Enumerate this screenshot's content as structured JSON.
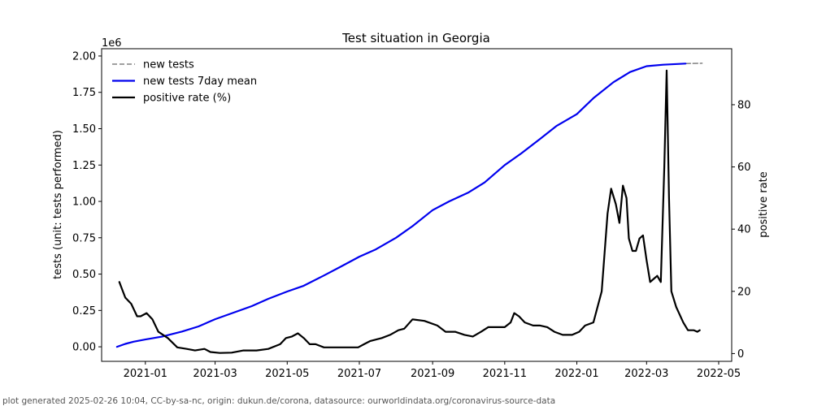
{
  "chart_data": {
    "type": "line",
    "title": "Test situation in Georgia",
    "ylabel": "tests (unit: tests performed)",
    "y2label": "positive rate",
    "y_offset_label": "1e6",
    "x_ticks": [
      "2021-01",
      "2021-03",
      "2021-05",
      "2021-07",
      "2021-09",
      "2021-11",
      "2022-01",
      "2022-03",
      "2022-05"
    ],
    "y_ticks": [
      "0.00",
      "0.25",
      "0.50",
      "0.75",
      "1.00",
      "1.25",
      "1.50",
      "1.75",
      "2.00"
    ],
    "y2_ticks": [
      "0",
      "20",
      "40",
      "60",
      "80"
    ],
    "ylim": [
      -0.1,
      2.05
    ],
    "y2lim": [
      -2.5,
      98
    ],
    "legend_position": "upper-left",
    "grid": false,
    "series": [
      {
        "name": "new tests",
        "axis": "left",
        "style": "dashed",
        "color": "#808080",
        "points": [
          [
            "2022-04-03",
            1.948
          ],
          [
            "2022-04-17",
            1.95
          ]
        ]
      },
      {
        "name": "new tests 7day mean",
        "axis": "left",
        "style": "solid",
        "color": "#0000ee",
        "points": [
          [
            "2020-12-08",
            0.0
          ],
          [
            "2020-12-15",
            0.02
          ],
          [
            "2020-12-22",
            0.035
          ],
          [
            "2021-01-01",
            0.05
          ],
          [
            "2021-01-15",
            0.07
          ],
          [
            "2021-02-01",
            0.105
          ],
          [
            "2021-02-15",
            0.14
          ],
          [
            "2021-03-01",
            0.19
          ],
          [
            "2021-03-15",
            0.23
          ],
          [
            "2021-04-01",
            0.28
          ],
          [
            "2021-04-15",
            0.33
          ],
          [
            "2021-05-01",
            0.38
          ],
          [
            "2021-05-15",
            0.42
          ],
          [
            "2021-06-01",
            0.49
          ],
          [
            "2021-06-15",
            0.55
          ],
          [
            "2021-07-01",
            0.62
          ],
          [
            "2021-07-15",
            0.67
          ],
          [
            "2021-08-01",
            0.75
          ],
          [
            "2021-08-15",
            0.83
          ],
          [
            "2021-09-01",
            0.94
          ],
          [
            "2021-09-15",
            1.0
          ],
          [
            "2021-10-01",
            1.06
          ],
          [
            "2021-10-15",
            1.13
          ],
          [
            "2021-11-01",
            1.25
          ],
          [
            "2021-11-15",
            1.33
          ],
          [
            "2021-12-01",
            1.43
          ],
          [
            "2021-12-15",
            1.52
          ],
          [
            "2022-01-01",
            1.6
          ],
          [
            "2022-01-15",
            1.71
          ],
          [
            "2022-02-01",
            1.82
          ],
          [
            "2022-02-15",
            1.89
          ],
          [
            "2022-03-01",
            1.93
          ],
          [
            "2022-03-15",
            1.94
          ],
          [
            "2022-04-03",
            1.948
          ]
        ]
      },
      {
        "name": "positive rate (%)",
        "axis": "right",
        "style": "solid",
        "color": "#000000",
        "points": [
          [
            "2020-12-10",
            23
          ],
          [
            "2020-12-12",
            21
          ],
          [
            "2020-12-15",
            18
          ],
          [
            "2020-12-20",
            16
          ],
          [
            "2020-12-25",
            12
          ],
          [
            "2020-12-28",
            12
          ],
          [
            "2021-01-02",
            13
          ],
          [
            "2021-01-07",
            11
          ],
          [
            "2021-01-12",
            7
          ],
          [
            "2021-01-20",
            5
          ],
          [
            "2021-01-28",
            2
          ],
          [
            "2021-02-05",
            1.5
          ],
          [
            "2021-02-12",
            1
          ],
          [
            "2021-02-20",
            1.5
          ],
          [
            "2021-02-25",
            0.5
          ],
          [
            "2021-03-05",
            0.2
          ],
          [
            "2021-03-15",
            0.3
          ],
          [
            "2021-03-25",
            1
          ],
          [
            "2021-04-05",
            1
          ],
          [
            "2021-04-15",
            1.5
          ],
          [
            "2021-04-25",
            3
          ],
          [
            "2021-04-30",
            5
          ],
          [
            "2021-05-05",
            5.5
          ],
          [
            "2021-05-10",
            6.5
          ],
          [
            "2021-05-15",
            5
          ],
          [
            "2021-05-20",
            3
          ],
          [
            "2021-05-25",
            3
          ],
          [
            "2021-06-01",
            2
          ],
          [
            "2021-06-10",
            2
          ],
          [
            "2021-06-20",
            2
          ],
          [
            "2021-06-30",
            2
          ],
          [
            "2021-07-05",
            3
          ],
          [
            "2021-07-10",
            4
          ],
          [
            "2021-07-20",
            5
          ],
          [
            "2021-07-27",
            6
          ],
          [
            "2021-08-03",
            7.5
          ],
          [
            "2021-08-08",
            8
          ],
          [
            "2021-08-15",
            11
          ],
          [
            "2021-08-25",
            10.5
          ],
          [
            "2021-09-05",
            9
          ],
          [
            "2021-09-12",
            7
          ],
          [
            "2021-09-20",
            7
          ],
          [
            "2021-09-28",
            6
          ],
          [
            "2021-10-05",
            5.5
          ],
          [
            "2021-10-12",
            7
          ],
          [
            "2021-10-18",
            8.5
          ],
          [
            "2021-10-25",
            8.5
          ],
          [
            "2021-11-01",
            8.5
          ],
          [
            "2021-11-06",
            10
          ],
          [
            "2021-11-09",
            13
          ],
          [
            "2021-11-13",
            12
          ],
          [
            "2021-11-18",
            10
          ],
          [
            "2021-11-25",
            9
          ],
          [
            "2021-12-01",
            9
          ],
          [
            "2021-12-07",
            8.5
          ],
          [
            "2021-12-13",
            7
          ],
          [
            "2021-12-20",
            6
          ],
          [
            "2021-12-28",
            6
          ],
          [
            "2022-01-03",
            7
          ],
          [
            "2022-01-08",
            9
          ],
          [
            "2022-01-15",
            10
          ],
          [
            "2022-01-22",
            20
          ],
          [
            "2022-01-27",
            45
          ],
          [
            "2022-01-30",
            53
          ],
          [
            "2022-02-03",
            48
          ],
          [
            "2022-02-06",
            42
          ],
          [
            "2022-02-09",
            54
          ],
          [
            "2022-02-12",
            50
          ],
          [
            "2022-02-14",
            37
          ],
          [
            "2022-02-17",
            33
          ],
          [
            "2022-02-20",
            33
          ],
          [
            "2022-02-23",
            37
          ],
          [
            "2022-02-26",
            38
          ],
          [
            "2022-03-01",
            30
          ],
          [
            "2022-03-04",
            23
          ],
          [
            "2022-03-07",
            24
          ],
          [
            "2022-03-10",
            25
          ],
          [
            "2022-03-13",
            23
          ],
          [
            "2022-03-16",
            60
          ],
          [
            "2022-03-18",
            91
          ],
          [
            "2022-03-20",
            50
          ],
          [
            "2022-03-22",
            20
          ],
          [
            "2022-03-26",
            15
          ],
          [
            "2022-04-01",
            10
          ],
          [
            "2022-04-05",
            7.5
          ],
          [
            "2022-04-10",
            7.5
          ],
          [
            "2022-04-13",
            7
          ],
          [
            "2022-04-15",
            7.5
          ]
        ]
      }
    ]
  },
  "footer": "plot generated 2025-02-26 10:04, CC-by-sa-nc, origin: dukun.de/corona, datasource: ourworldindata.org/coronavirus-source-data"
}
